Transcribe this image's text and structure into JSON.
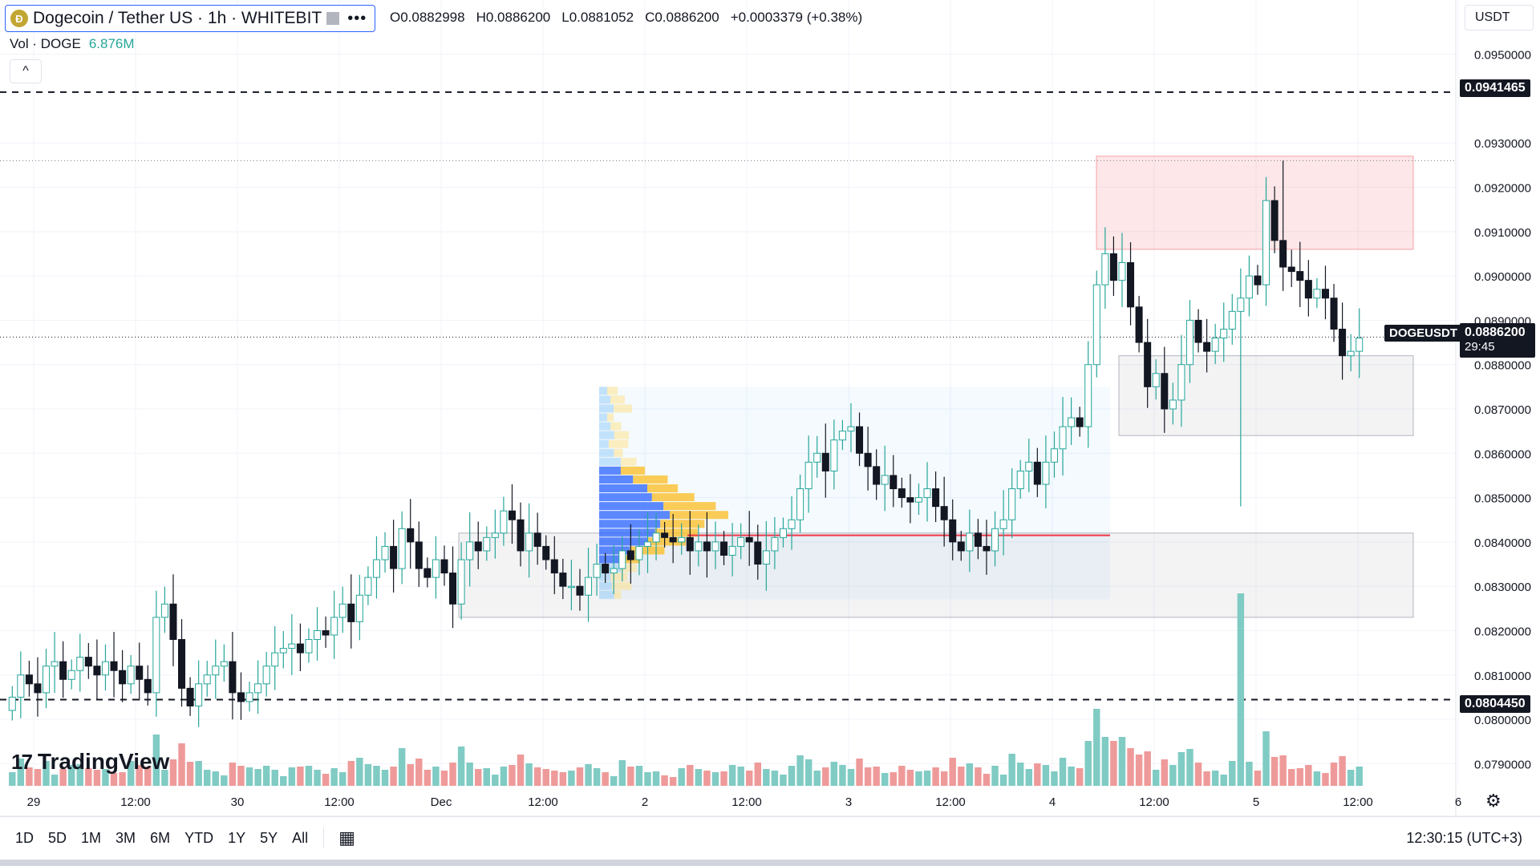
{
  "header": {
    "coin_glyph": "Ð",
    "symbol_title": "Dogecoin / Tether US · 1h · WHITEBIT",
    "more_icon": "•••",
    "ohlc": {
      "open": "O0.0882998",
      "high": "H0.0886200",
      "low": "L0.0881052",
      "close": "C0.0886200",
      "change": "+0.0003379 (+0.38%)"
    },
    "volume_label": "Vol · DOGE",
    "volume_value": "6.876M",
    "collapse_icon": "^"
  },
  "currency_selector": "USDT",
  "price_axis": {
    "ticks": [
      "0.0950000",
      "0.0930000",
      "0.0920000",
      "0.0910000",
      "0.0900000",
      "0.0890000",
      "0.0880000",
      "0.0870000",
      "0.0860000",
      "0.0850000",
      "0.0840000",
      "0.0830000",
      "0.0820000",
      "0.0810000",
      "0.0800000",
      "0.0790000"
    ],
    "resistance_label": "0.0941465",
    "support_label": "0.0804450",
    "symbol_tag": "DOGEUSDT",
    "last_price": "0.0886200",
    "countdown": "29:45"
  },
  "time_axis": [
    "29",
    "12:00",
    "30",
    "12:00",
    "Dec",
    "12:00",
    "2",
    "12:00",
    "3",
    "12:00",
    "4",
    "12:00",
    "5",
    "12:00",
    "6"
  ],
  "logo_text": "TradingView",
  "logo_mark": "17",
  "range_buttons": [
    "1D",
    "5D",
    "1M",
    "3M",
    "6M",
    "YTD",
    "1Y",
    "5Y",
    "All"
  ],
  "calendar_icon": "▦",
  "clock": "12:30:15 (UTC+3)",
  "gear_icon": "⚙",
  "colors": {
    "up": "#26a69a",
    "down": "#131722",
    "vol_up": "#80cbc4",
    "vol_down": "#ef9a9a",
    "poc": "#f23645"
  },
  "chart_data": {
    "type": "candlestick",
    "symbol": "DOGEUSDT",
    "timeframe": "1h",
    "ylim": [
      0.0785,
      0.0955
    ],
    "x_range_days": [
      "Nov 29",
      "Nov 30",
      "Dec 1",
      "Dec 2",
      "Dec 3",
      "Dec 4",
      "Dec 5",
      "Dec 6"
    ],
    "last_close": 0.08862,
    "horizontal_levels": [
      0.0941465,
      0.080445
    ],
    "zones": [
      {
        "label": "resistance",
        "from": 0.0906,
        "to": 0.0927
      },
      {
        "label": "support-upper",
        "from": 0.0864,
        "to": 0.0882
      },
      {
        "label": "support-lower",
        "from": 0.0823,
        "to": 0.0842
      }
    ],
    "closes": [
      0.0805,
      0.081,
      0.0808,
      0.0806,
      0.0812,
      0.0813,
      0.0809,
      0.0811,
      0.0814,
      0.0812,
      0.081,
      0.0813,
      0.0811,
      0.0808,
      0.0812,
      0.0809,
      0.0806,
      0.0823,
      0.0826,
      0.0818,
      0.0807,
      0.0803,
      0.0808,
      0.081,
      0.0812,
      0.0813,
      0.0806,
      0.0804,
      0.0806,
      0.0808,
      0.0812,
      0.0815,
      0.0816,
      0.0817,
      0.0815,
      0.0818,
      0.082,
      0.0819,
      0.0823,
      0.0826,
      0.0822,
      0.0828,
      0.0832,
      0.0836,
      0.0839,
      0.0834,
      0.0843,
      0.084,
      0.0834,
      0.0832,
      0.0836,
      0.0833,
      0.0826,
      0.0836,
      0.084,
      0.0838,
      0.0841,
      0.0842,
      0.0847,
      0.0845,
      0.0838,
      0.0842,
      0.0839,
      0.0836,
      0.0833,
      0.083,
      0.083,
      0.0828,
      0.0832,
      0.0835,
      0.0833,
      0.0834,
      0.0838,
      0.0836,
      0.0839,
      0.084,
      0.0842,
      0.0841,
      0.084,
      0.0841,
      0.0838,
      0.084,
      0.0838,
      0.084,
      0.0837,
      0.0839,
      0.0841,
      0.084,
      0.0835,
      0.0838,
      0.0841,
      0.0843,
      0.0845,
      0.0852,
      0.0858,
      0.086,
      0.0856,
      0.0863,
      0.0865,
      0.0866,
      0.086,
      0.0857,
      0.0853,
      0.0855,
      0.0852,
      0.085,
      0.0849,
      0.085,
      0.0852,
      0.0848,
      0.0845,
      0.084,
      0.0838,
      0.0842,
      0.0839,
      0.0838,
      0.0843,
      0.0845,
      0.0852,
      0.0856,
      0.0858,
      0.0853,
      0.0858,
      0.0861,
      0.0866,
      0.0868,
      0.0866,
      0.088,
      0.0898,
      0.0905,
      0.0899,
      0.0903,
      0.0893,
      0.0885,
      0.0875,
      0.0878,
      0.087,
      0.0872,
      0.088,
      0.089,
      0.0885,
      0.0883,
      0.0886,
      0.0888,
      0.0892,
      0.0895,
      0.09,
      0.0898,
      0.0917,
      0.0908,
      0.0902,
      0.0901,
      0.0899,
      0.0895,
      0.0897,
      0.0895,
      0.0888,
      0.0882,
      0.0883,
      0.0886
    ]
  }
}
